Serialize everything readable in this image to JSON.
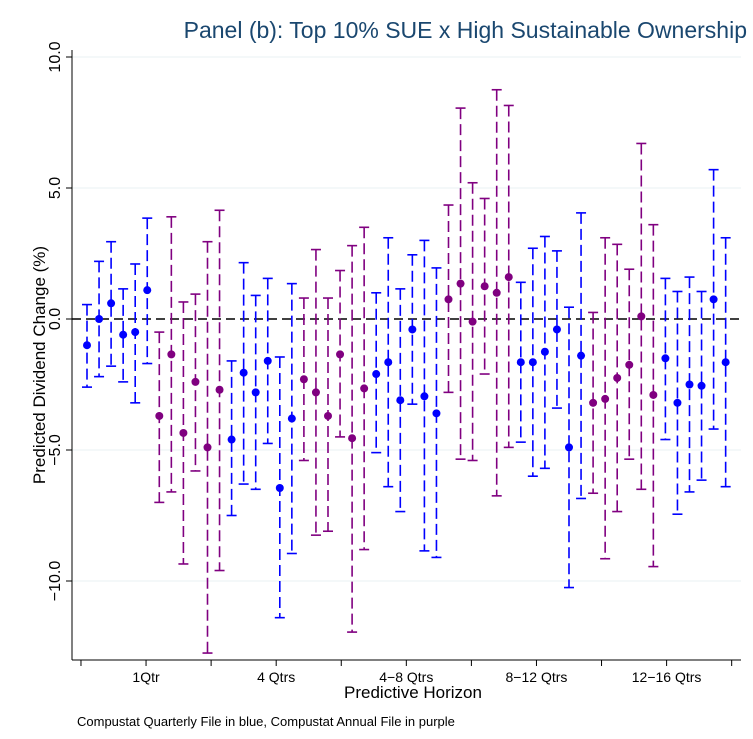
{
  "chart_data": {
    "type": "scatter",
    "title": "Panel (b): Top 10% SUE x High Sustainable Ownership",
    "xlabel": "Predictive Horizon",
    "ylabel": "Predicted Dividend Change (%)",
    "note": "Compustat Quarterly File in blue, Compustat Annual File in purple",
    "ylim": [
      -13,
      10
    ],
    "yticks": [
      -10,
      -5,
      0,
      5,
      10
    ],
    "ytick_labels": [
      "−10.0",
      "−5.0",
      "0.0",
      "5.0",
      "10.0"
    ],
    "x_groups": [
      "1Qtr",
      "4 Qtrs",
      "4−8 Qtrs",
      "8−12 Qtrs",
      "12−16 Qtrs"
    ],
    "grid": true,
    "reference_line_y": 0,
    "colors": {
      "quarterly": "#0000ff",
      "annual": "#800080",
      "reference": "#000000",
      "grid": "#eaf2f3"
    },
    "points": [
      {
        "i": 1,
        "y": -1.0,
        "lo": -2.6,
        "hi": 0.55,
        "src": "quarterly"
      },
      {
        "i": 2,
        "y": 0.0,
        "lo": -2.2,
        "hi": 2.2,
        "src": "quarterly"
      },
      {
        "i": 3,
        "y": 0.6,
        "lo": -1.8,
        "hi": 2.95,
        "src": "quarterly"
      },
      {
        "i": 4,
        "y": -0.6,
        "lo": -2.4,
        "hi": 1.15,
        "src": "quarterly"
      },
      {
        "i": 5,
        "y": -0.5,
        "lo": -3.2,
        "hi": 2.1,
        "src": "quarterly"
      },
      {
        "i": 6,
        "y": 1.1,
        "lo": -1.7,
        "hi": 3.85,
        "src": "quarterly"
      },
      {
        "i": 7,
        "y": -3.7,
        "lo": -7.0,
        "hi": -0.5,
        "src": "annual"
      },
      {
        "i": 8,
        "y": -1.35,
        "lo": -6.6,
        "hi": 3.9,
        "src": "annual"
      },
      {
        "i": 9,
        "y": -4.35,
        "lo": -9.35,
        "hi": 0.65,
        "src": "annual"
      },
      {
        "i": 10,
        "y": -2.4,
        "lo": -5.8,
        "hi": 0.95,
        "src": "annual"
      },
      {
        "i": 11,
        "y": -4.9,
        "lo": -12.75,
        "hi": 2.95,
        "src": "annual"
      },
      {
        "i": 12,
        "y": -2.7,
        "lo": -9.6,
        "hi": 4.15,
        "src": "annual"
      },
      {
        "i": 13,
        "y": -4.6,
        "lo": -7.5,
        "hi": -1.6,
        "src": "quarterly"
      },
      {
        "i": 14,
        "y": -2.05,
        "lo": -6.3,
        "hi": 2.15,
        "src": "quarterly"
      },
      {
        "i": 15,
        "y": -2.8,
        "lo": -6.5,
        "hi": 0.9,
        "src": "quarterly"
      },
      {
        "i": 16,
        "y": -1.6,
        "lo": -4.75,
        "hi": 1.55,
        "src": "quarterly"
      },
      {
        "i": 17,
        "y": -6.45,
        "lo": -11.4,
        "hi": -1.45,
        "src": "quarterly"
      },
      {
        "i": 18,
        "y": -3.8,
        "lo": -8.95,
        "hi": 1.35,
        "src": "quarterly"
      },
      {
        "i": 19,
        "y": -2.3,
        "lo": -5.4,
        "hi": 0.8,
        "src": "annual"
      },
      {
        "i": 20,
        "y": -2.8,
        "lo": -8.25,
        "hi": 2.65,
        "src": "annual"
      },
      {
        "i": 21,
        "y": -3.7,
        "lo": -8.1,
        "hi": 0.8,
        "src": "annual"
      },
      {
        "i": 22,
        "y": -1.35,
        "lo": -4.5,
        "hi": 1.85,
        "src": "annual"
      },
      {
        "i": 23,
        "y": -4.55,
        "lo": -11.95,
        "hi": 2.8,
        "src": "annual"
      },
      {
        "i": 24,
        "y": -2.65,
        "lo": -8.8,
        "hi": 3.5,
        "src": "annual"
      },
      {
        "i": 25,
        "y": -2.1,
        "lo": -5.1,
        "hi": 1.0,
        "src": "quarterly"
      },
      {
        "i": 26,
        "y": -1.65,
        "lo": -6.4,
        "hi": 3.1,
        "src": "quarterly"
      },
      {
        "i": 27,
        "y": -3.1,
        "lo": -7.35,
        "hi": 1.15,
        "src": "quarterly"
      },
      {
        "i": 28,
        "y": -0.4,
        "lo": -3.25,
        "hi": 2.45,
        "src": "quarterly"
      },
      {
        "i": 29,
        "y": -2.95,
        "lo": -8.85,
        "hi": 3.0,
        "src": "quarterly"
      },
      {
        "i": 30,
        "y": -3.6,
        "lo": -9.1,
        "hi": 1.95,
        "src": "quarterly"
      },
      {
        "i": 31,
        "y": 0.75,
        "lo": -2.8,
        "hi": 4.35,
        "src": "annual"
      },
      {
        "i": 32,
        "y": 1.35,
        "lo": -5.35,
        "hi": 8.05,
        "src": "annual"
      },
      {
        "i": 33,
        "y": -0.1,
        "lo": -5.4,
        "hi": 5.2,
        "src": "annual"
      },
      {
        "i": 34,
        "y": 1.25,
        "lo": -2.1,
        "hi": 4.6,
        "src": "annual"
      },
      {
        "i": 35,
        "y": 1.0,
        "lo": -6.75,
        "hi": 8.75,
        "src": "annual"
      },
      {
        "i": 36,
        "y": 1.6,
        "lo": -4.9,
        "hi": 8.15,
        "src": "annual"
      },
      {
        "i": 37,
        "y": -1.65,
        "lo": -4.7,
        "hi": 1.4,
        "src": "quarterly"
      },
      {
        "i": 38,
        "y": -1.65,
        "lo": -6.0,
        "hi": 2.7,
        "src": "quarterly"
      },
      {
        "i": 39,
        "y": -1.25,
        "lo": -5.7,
        "hi": 3.15,
        "src": "quarterly"
      },
      {
        "i": 40,
        "y": -0.4,
        "lo": -3.4,
        "hi": 2.6,
        "src": "quarterly"
      },
      {
        "i": 41,
        "y": -4.9,
        "lo": -10.25,
        "hi": 0.45,
        "src": "quarterly"
      },
      {
        "i": 42,
        "y": -1.4,
        "lo": -6.85,
        "hi": 4.05,
        "src": "quarterly"
      },
      {
        "i": 43,
        "y": -3.2,
        "lo": -6.65,
        "hi": 0.25,
        "src": "annual"
      },
      {
        "i": 44,
        "y": -3.05,
        "lo": -9.15,
        "hi": 3.1,
        "src": "annual"
      },
      {
        "i": 45,
        "y": -2.25,
        "lo": -7.35,
        "hi": 2.85,
        "src": "annual"
      },
      {
        "i": 46,
        "y": -1.75,
        "lo": -5.35,
        "hi": 1.9,
        "src": "annual"
      },
      {
        "i": 47,
        "y": 0.1,
        "lo": -6.5,
        "hi": 6.7,
        "src": "annual"
      },
      {
        "i": 48,
        "y": -2.9,
        "lo": -9.45,
        "hi": 3.6,
        "src": "annual"
      },
      {
        "i": 49,
        "y": -1.5,
        "lo": -4.6,
        "hi": 1.55,
        "src": "quarterly"
      },
      {
        "i": 50,
        "y": -3.2,
        "lo": -7.45,
        "hi": 1.05,
        "src": "quarterly"
      },
      {
        "i": 51,
        "y": -2.5,
        "lo": -6.6,
        "hi": 1.6,
        "src": "quarterly"
      },
      {
        "i": 52,
        "y": -2.55,
        "lo": -6.15,
        "hi": 1.05,
        "src": "quarterly"
      },
      {
        "i": 53,
        "y": 0.75,
        "lo": -4.2,
        "hi": 5.7,
        "src": "quarterly"
      },
      {
        "i": 54,
        "y": -1.65,
        "lo": -6.4,
        "hi": 3.1,
        "src": "quarterly"
      }
    ]
  }
}
